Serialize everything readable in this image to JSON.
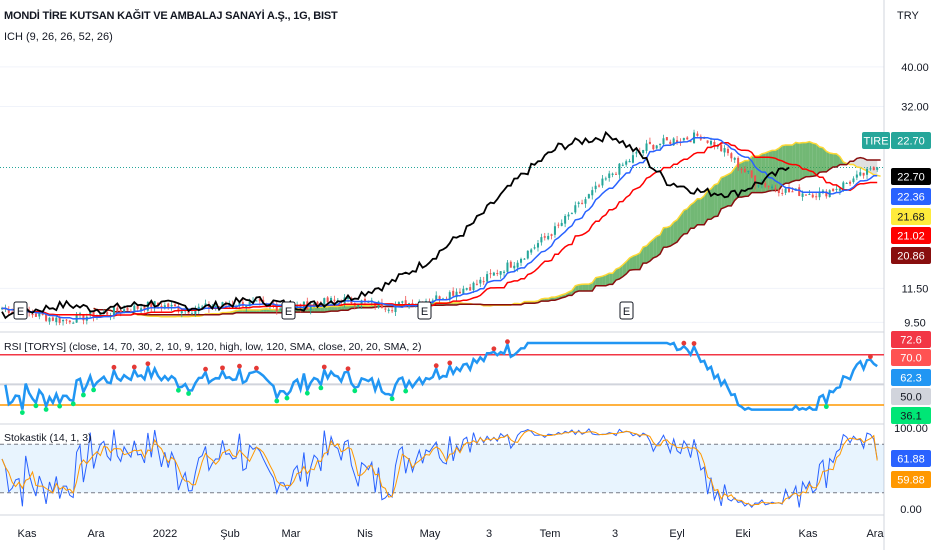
{
  "header": {
    "title": "MONDİ TİRE KUTSAN KAĞIT VE AMBALAJ SANAYİ A.Ş., 1G, BIST",
    "indicator": "ICH (9, 26, 26, 52, 26)",
    "currency": "TRY"
  },
  "panes": {
    "rsi_label": "RSI [TORYS] (close, 14, 70, 30, 2, 10, 9, 120, high, low, 120, SMA, close, 20, 20, SMA, 2)",
    "stoch_label": "Stokastik (14, 1, 3)"
  },
  "price_axis": {
    "ticks": [
      "40.00",
      "32.00",
      "11.50",
      "9.50"
    ],
    "tags": [
      {
        "text": "TIRE",
        "color": "#26a69a",
        "fg": "#ffffff"
      },
      {
        "text": "22.70",
        "color": "#26a69a",
        "fg": "#ffffff"
      },
      {
        "text": "22.70",
        "color": "#000000",
        "fg": "#ffffff"
      },
      {
        "text": "22.36",
        "color": "#2962ff",
        "fg": "#ffffff"
      },
      {
        "text": "21.68",
        "color": "#ffeb3b",
        "fg": "#131722"
      },
      {
        "text": "21.02",
        "color": "#ff0000",
        "fg": "#ffffff"
      },
      {
        "text": "20.86",
        "color": "#880e0e",
        "fg": "#ffffff"
      }
    ]
  },
  "rsi_axis": {
    "tags": [
      {
        "text": "72.6",
        "color": "#f23645",
        "fg": "#ffffff"
      },
      {
        "text": "70.0",
        "color": "#ff5252",
        "fg": "#ffffff"
      },
      {
        "text": "62.3",
        "color": "#2196f3",
        "fg": "#ffffff"
      },
      {
        "text": "50.0",
        "color": "#d1d4dc",
        "fg": "#131722"
      },
      {
        "text": "36.1",
        "color": "#00e676",
        "fg": "#131722"
      }
    ]
  },
  "stoch_axis": {
    "ticks": [
      "100.00",
      "0.00"
    ],
    "tags": [
      {
        "text": "61.88",
        "color": "#2962ff",
        "fg": "#ffffff"
      },
      {
        "text": "59.88",
        "color": "#ff9800",
        "fg": "#ffffff"
      }
    ]
  },
  "time_axis": [
    "Kas",
    "Ara",
    "2022",
    "Şub",
    "Mar",
    "Nis",
    "May",
    "3",
    "Tem",
    "3",
    "Eyl",
    "Eki",
    "Kas",
    "Ara"
  ],
  "event_marker": "E",
  "chart_data": {
    "type": "candlestick",
    "symbol": "TIRE",
    "timeframe": "1G",
    "y_scale": "log",
    "ylim": [
      9.0,
      46.0
    ],
    "last": {
      "close": 22.7,
      "conversion": 22.36,
      "span_a": 21.68,
      "base": 21.02,
      "span_b": 20.86
    },
    "close_samples": {
      "x": [
        "Kas",
        "Ara",
        "2022",
        "Şub",
        "Mar",
        "Nis",
        "May",
        "3",
        "Tem",
        "3",
        "Eyl",
        "Eki"
      ],
      "values": [
        10.2,
        10.6,
        10.4,
        10.0,
        10.8,
        14.5,
        18.5,
        23.0,
        27.5,
        21.0,
        19.5,
        22.7
      ]
    },
    "rsi": {
      "last": 62.3,
      "upper": 70.0,
      "middle": 50.0,
      "lower": 36.1,
      "signal": 72.6
    },
    "stochastic": {
      "k": 61.88,
      "d": 59.88,
      "range": [
        0,
        100
      ]
    },
    "colors": {
      "up": "#26a69a",
      "down": "#ef5350",
      "conversion": "#2962ff",
      "base": "#ff0000",
      "lagging": "#000000",
      "cloud_bull": "#43a047",
      "cloud_bear": "#a5a5a5"
    }
  }
}
